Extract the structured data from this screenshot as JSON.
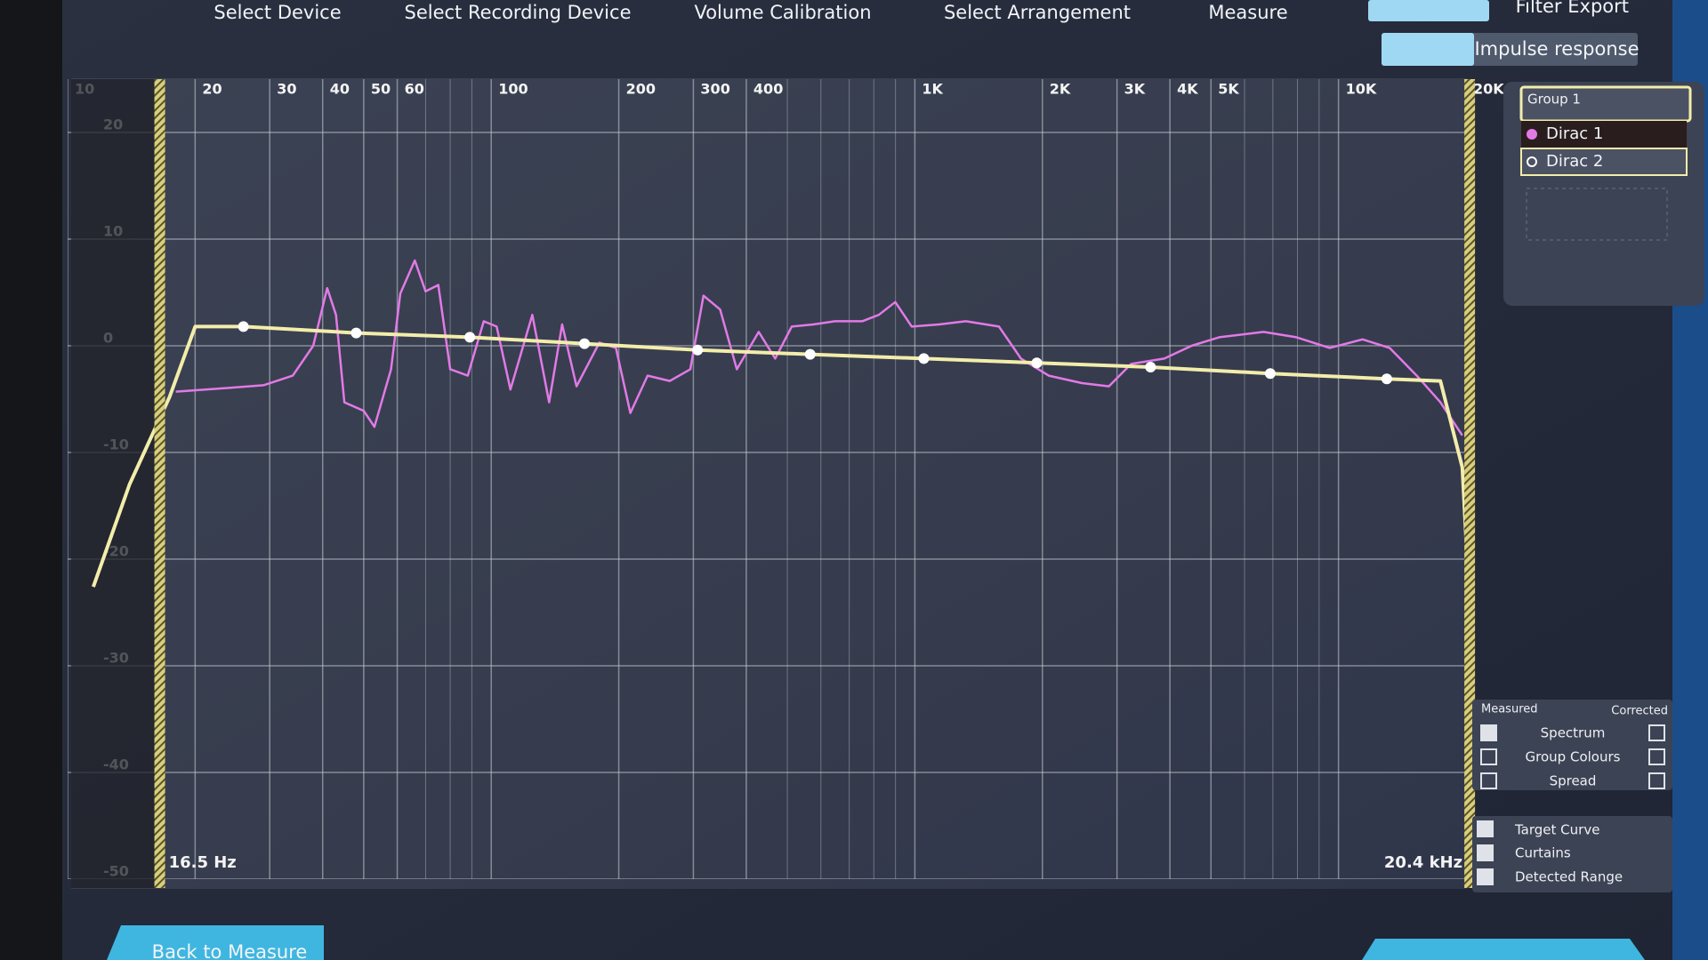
{
  "nav": {
    "tabs": [
      "Select Device",
      "Select Recording Device",
      "Volume Calibration",
      "Select Arrangement",
      "Measure",
      "Filter Export"
    ],
    "impulse_button": "Impulse response"
  },
  "panel": {
    "group_title": "Group 1",
    "other_items": [
      "Dirac 2"
    ]
  },
  "display": {
    "measured_header": "Measured",
    "corrected_header": "Corrected",
    "options": [
      {
        "label": "Spectrum",
        "measured": true,
        "corrected": false
      },
      {
        "label": "Group Colours",
        "measured": false,
        "corrected": false
      },
      {
        "label": "Spread",
        "measured": false,
        "corrected": false
      }
    ],
    "toggles": [
      {
        "label": "Curtains",
        "checked": true
      },
      {
        "label": "Detected Range",
        "checked": true
      }
    ],
    "target_checked": true
  },
  "footer": {
    "back_button": "Back to Measure"
  },
  "chart_data": {
    "type": "line",
    "xscale": "log",
    "xlim": [
      10,
      20000
    ],
    "ylim": [
      -50,
      25
    ],
    "xticks": [
      10,
      20,
      30,
      40,
      50,
      60,
      100,
      200,
      300,
      400,
      {
        "value": 1000,
        "label": "1K"
      },
      {
        "value": 2000,
        "label": "2K"
      },
      {
        "value": 3000,
        "label": "3K"
      },
      {
        "value": 4000,
        "label": "4K"
      },
      {
        "value": 5000,
        "label": "5K"
      },
      {
        "value": 10000,
        "label": "10K"
      },
      {
        "value": 20000,
        "label": "20K"
      }
    ],
    "xminor_ticks": [
      70,
      80,
      90,
      500,
      600,
      700,
      800,
      900,
      6000,
      7000,
      8000,
      9000
    ],
    "yticks": [
      20,
      10,
      0,
      -10,
      -20,
      -30,
      -40,
      -50
    ],
    "grid": true,
    "curtains": [
      {
        "value": 16.5,
        "label": "16.5 Hz"
      },
      {
        "value": 20400,
        "label": "20.4 kHz"
      }
    ],
    "series": [
      {
        "name": "Dirac 1",
        "color": "#e27ae6",
        "x": [
          18,
          23,
          29,
          34,
          38,
          41,
          43,
          45,
          50,
          53,
          58,
          61,
          66,
          70,
          75,
          80,
          88,
          96,
          103,
          111,
          125,
          137,
          147,
          159,
          180,
          197,
          213,
          234,
          264,
          295,
          317,
          347,
          380,
          428,
          468,
          512,
          576,
          648,
          751,
          822,
          899,
          983,
          1140,
          1320,
          1580,
          1780,
          2070,
          2480,
          2870,
          3240,
          3880,
          4500,
          5230,
          6650,
          7950,
          9530,
          11400,
          13200,
          15300,
          17400,
          19600
        ],
        "values": [
          -4.3,
          -4,
          -3.7,
          -2.8,
          0,
          5.4,
          2.9,
          -5.3,
          -6.1,
          -7.6,
          -2.2,
          4.9,
          8,
          5.1,
          5.7,
          -2.2,
          -2.8,
          2.3,
          1.8,
          -4.1,
          2.9,
          -5.3,
          2,
          -3.8,
          0.3,
          -0.2,
          -6.3,
          -2.8,
          -3.3,
          -2.2,
          4.7,
          3.4,
          -2.2,
          1.3,
          -1.2,
          1.8,
          2,
          2.3,
          2.3,
          2.9,
          4.1,
          1.8,
          2,
          2.3,
          1.8,
          -1.2,
          -2.8,
          -3.5,
          -3.8,
          -1.7,
          -1.2,
          0,
          0.8,
          1.3,
          0.8,
          -0.2,
          0.6,
          -0.2,
          -2.8,
          -5.3,
          -8.4
        ]
      },
      {
        "name": "Target Curve",
        "color": "#f3edab",
        "x": [
          11.5,
          14,
          17.4,
          20,
          26,
          48,
          89,
          166,
          307,
          566,
          1050,
          1940,
          3600,
          6900,
          13000,
          17400,
          19600,
          20000
        ],
        "values": [
          -22.6,
          -13,
          -4.8,
          1.8,
          1.8,
          1.2,
          0.8,
          0.2,
          -0.4,
          -0.8,
          -1.2,
          -1.6,
          -2,
          -2.6,
          -3.1,
          -3.3,
          -11.4,
          -18
        ]
      }
    ],
    "target_points": {
      "x": [
        26,
        48,
        89,
        166,
        307,
        566,
        1050,
        1940,
        3600,
        6900,
        13000
      ],
      "values": [
        1.8,
        1.2,
        0.8,
        0.2,
        -0.4,
        -0.8,
        -1.2,
        -1.6,
        -2,
        -2.6,
        -3.1
      ]
    }
  }
}
